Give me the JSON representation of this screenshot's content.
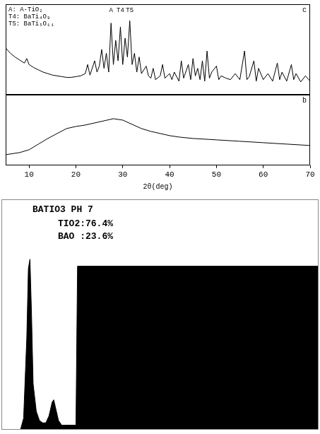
{
  "chart_data": [
    {
      "type": "line",
      "panel": "c",
      "notes": [
        "A: A-TiO₂",
        "T4: BaTi₄O₉",
        "T5: BaTi₅O₁₁"
      ],
      "peak_labels": [
        {
          "text": "A",
          "x": 27.5
        },
        {
          "text": "T4",
          "x": 29.5
        },
        {
          "text": "T5",
          "x": 31.5
        }
      ],
      "x": [
        5,
        6,
        7,
        8,
        9,
        9.5,
        10,
        11,
        12,
        13,
        14,
        15,
        16,
        17,
        18,
        19,
        20,
        21,
        22,
        22.5,
        23,
        24,
        24.5,
        25,
        25.5,
        26,
        26.5,
        27,
        27.5,
        28,
        28.5,
        29,
        29.5,
        30,
        30.5,
        31,
        31.5,
        32,
        32.5,
        33,
        33.5,
        34,
        35,
        35.5,
        36,
        36.5,
        37,
        38,
        38.5,
        39,
        40,
        40.5,
        41,
        42,
        42.5,
        43,
        44,
        44.5,
        45,
        45.5,
        46,
        46.5,
        47,
        47.5,
        48,
        48.5,
        49,
        50,
        50.5,
        51,
        52,
        53,
        54,
        55,
        56,
        56.5,
        57,
        58,
        58.5,
        59,
        60,
        61,
        62,
        63,
        63.5,
        64,
        65,
        66,
        66.5,
        67,
        68,
        69,
        70
      ],
      "values": [
        62,
        55,
        50,
        46,
        42,
        48,
        40,
        36,
        33,
        30,
        28,
        26,
        25,
        24,
        23,
        23,
        24,
        25,
        28,
        40,
        26,
        45,
        30,
        38,
        60,
        35,
        55,
        30,
        95,
        40,
        72,
        45,
        90,
        40,
        75,
        50,
        98,
        40,
        55,
        30,
        50,
        28,
        38,
        25,
        22,
        35,
        20,
        25,
        40,
        22,
        28,
        20,
        30,
        18,
        45,
        22,
        40,
        20,
        48,
        25,
        35,
        20,
        45,
        18,
        58,
        22,
        30,
        38,
        20,
        25,
        22,
        20,
        28,
        20,
        58,
        20,
        24,
        45,
        18,
        35,
        20,
        28,
        18,
        42,
        20,
        30,
        18,
        40,
        20,
        28,
        17,
        25,
        18
      ],
      "color": "#000000",
      "xlim": [
        5,
        70
      ],
      "ylim": [
        0,
        120
      ],
      "tick_labels": false,
      "grid": false
    },
    {
      "type": "line",
      "panel": "b",
      "x_label": "2θ(deg)",
      "x": [
        5,
        8,
        10,
        12,
        14,
        16,
        18,
        20,
        22,
        24,
        26,
        28,
        30,
        32,
        34,
        36,
        38,
        40,
        42,
        45,
        50,
        55,
        60,
        65,
        70
      ],
      "values": [
        15,
        18,
        22,
        30,
        38,
        45,
        52,
        55,
        57,
        60,
        63,
        66,
        64,
        58,
        52,
        48,
        45,
        42,
        40,
        38,
        36,
        34,
        32,
        30,
        28
      ],
      "color": "#000000",
      "xlim": [
        5,
        70
      ],
      "xticks": [
        10,
        20,
        30,
        40,
        50,
        60,
        70
      ],
      "ylim": [
        0,
        100
      ],
      "tick_labels": "x",
      "grid": false
    },
    {
      "type": "area",
      "title": "BATIO3 PH 7",
      "subtitle": [
        "TIO2:76.4%",
        "BAO :23.6%"
      ],
      "x": [
        0,
        6,
        7,
        8,
        8.5,
        9,
        9.5,
        10,
        11,
        12,
        13,
        14,
        15,
        16,
        16.5,
        17,
        18,
        19,
        20,
        22,
        23.5,
        24,
        100
      ],
      "values": [
        0,
        0,
        5,
        40,
        70,
        74,
        50,
        20,
        8,
        4,
        3,
        3,
        6,
        12,
        13,
        10,
        4,
        2,
        2,
        2,
        2,
        71,
        71
      ],
      "color": "#000000",
      "xlim": [
        0,
        100
      ],
      "ylim": [
        0,
        100
      ],
      "tick_labels": false,
      "grid": false
    }
  ]
}
